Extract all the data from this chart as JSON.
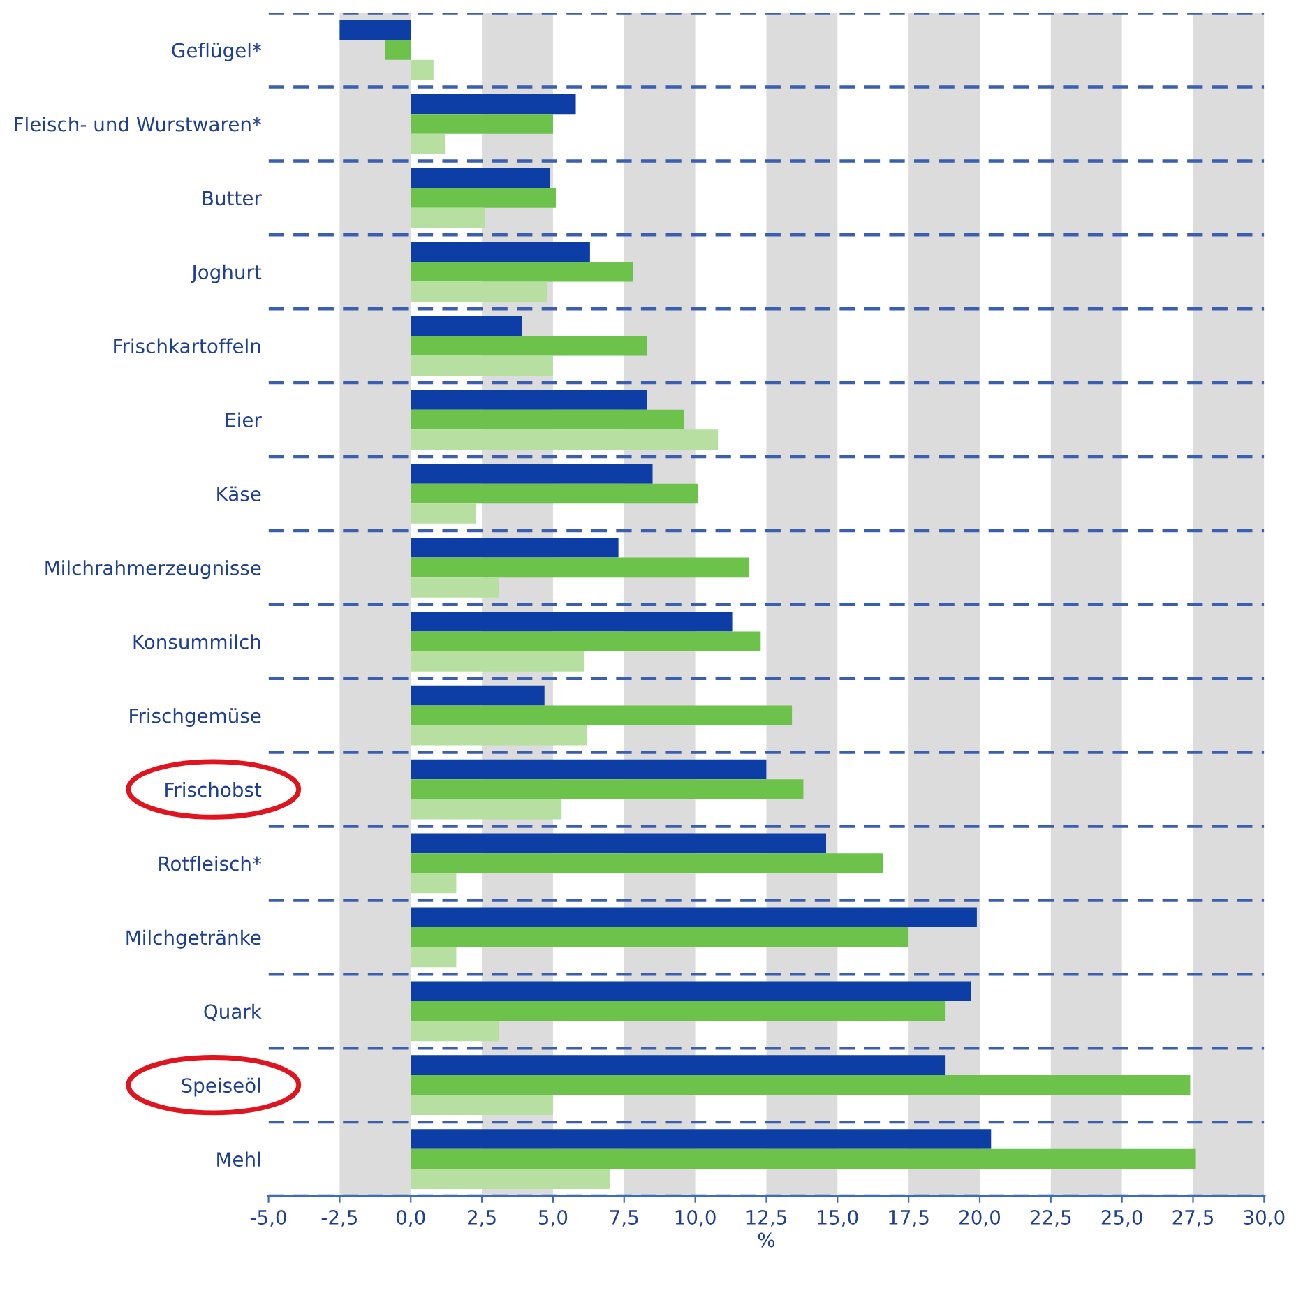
{
  "chart_data": {
    "type": "bar",
    "orientation": "horizontal",
    "xlabel": "%",
    "categories": [
      "Geflügel*",
      "Fleisch- und Wurstwaren*",
      "Butter",
      "Joghurt",
      "Frischkartoffeln",
      "Eier",
      "Käse",
      "Milchrahmerzeugnisse",
      "Konsummilch",
      "Frischgemüse",
      "Frischobst",
      "Rotfleisch*",
      "Milchgetränke",
      "Quark",
      "Speiseöl",
      "Mehl"
    ],
    "series": [
      {
        "color": "#0c3ea5",
        "values": [
          -2.5,
          5.8,
          4.9,
          6.3,
          3.9,
          8.3,
          8.5,
          7.3,
          11.3,
          4.7,
          12.5,
          14.6,
          19.9,
          19.7,
          18.8,
          20.4
        ]
      },
      {
        "color": "#6cc24a",
        "values": [
          -0.9,
          5.0,
          5.1,
          7.8,
          8.3,
          9.6,
          10.1,
          11.9,
          12.3,
          13.4,
          13.8,
          16.6,
          17.5,
          18.8,
          27.4,
          27.6
        ]
      },
      {
        "color": "#b7dfa2",
        "values": [
          0.8,
          1.2,
          2.6,
          4.8,
          5.0,
          10.8,
          2.3,
          3.1,
          6.1,
          6.2,
          5.3,
          1.6,
          1.6,
          3.1,
          5.0,
          7.0
        ]
      }
    ],
    "xlim": [
      -5,
      30
    ],
    "xticks": [
      {
        "value": -5,
        "label": "-5,0"
      },
      {
        "value": -2.5,
        "label": "-2,5"
      },
      {
        "value": 0,
        "label": "0,0"
      },
      {
        "value": 2.5,
        "label": "2,5"
      },
      {
        "value": 5,
        "label": "5,0"
      },
      {
        "value": 7.5,
        "label": "7,5"
      },
      {
        "value": 10,
        "label": "10,0"
      },
      {
        "value": 12.5,
        "label": "12,5"
      },
      {
        "value": 15,
        "label": "15,0"
      },
      {
        "value": 17.5,
        "label": "17,5"
      },
      {
        "value": 20,
        "label": "20,0"
      },
      {
        "value": 22.5,
        "label": "22,5"
      },
      {
        "value": 25,
        "label": "25,0"
      },
      {
        "value": 27.5,
        "label": "27,5"
      },
      {
        "value": 30,
        "label": "30,0"
      }
    ],
    "bands": [
      {
        "axis": "x",
        "from": -2.5,
        "to": 0,
        "color": "#dcdcdc"
      },
      {
        "axis": "x",
        "from": 2.5,
        "to": 5,
        "color": "#dcdcdc"
      },
      {
        "axis": "x",
        "from": 7.5,
        "to": 10,
        "color": "#dcdcdc"
      },
      {
        "axis": "x",
        "from": 12.5,
        "to": 15,
        "color": "#dcdcdc"
      },
      {
        "axis": "x",
        "from": 17.5,
        "to": 20,
        "color": "#dcdcdc"
      },
      {
        "axis": "x",
        "from": 22.5,
        "to": 25,
        "color": "#dcdcdc"
      },
      {
        "axis": "x",
        "from": 27.5,
        "to": 30,
        "color": "#dcdcdc"
      }
    ],
    "grid": "y",
    "line_style": "dashed",
    "legend": false
  }
}
